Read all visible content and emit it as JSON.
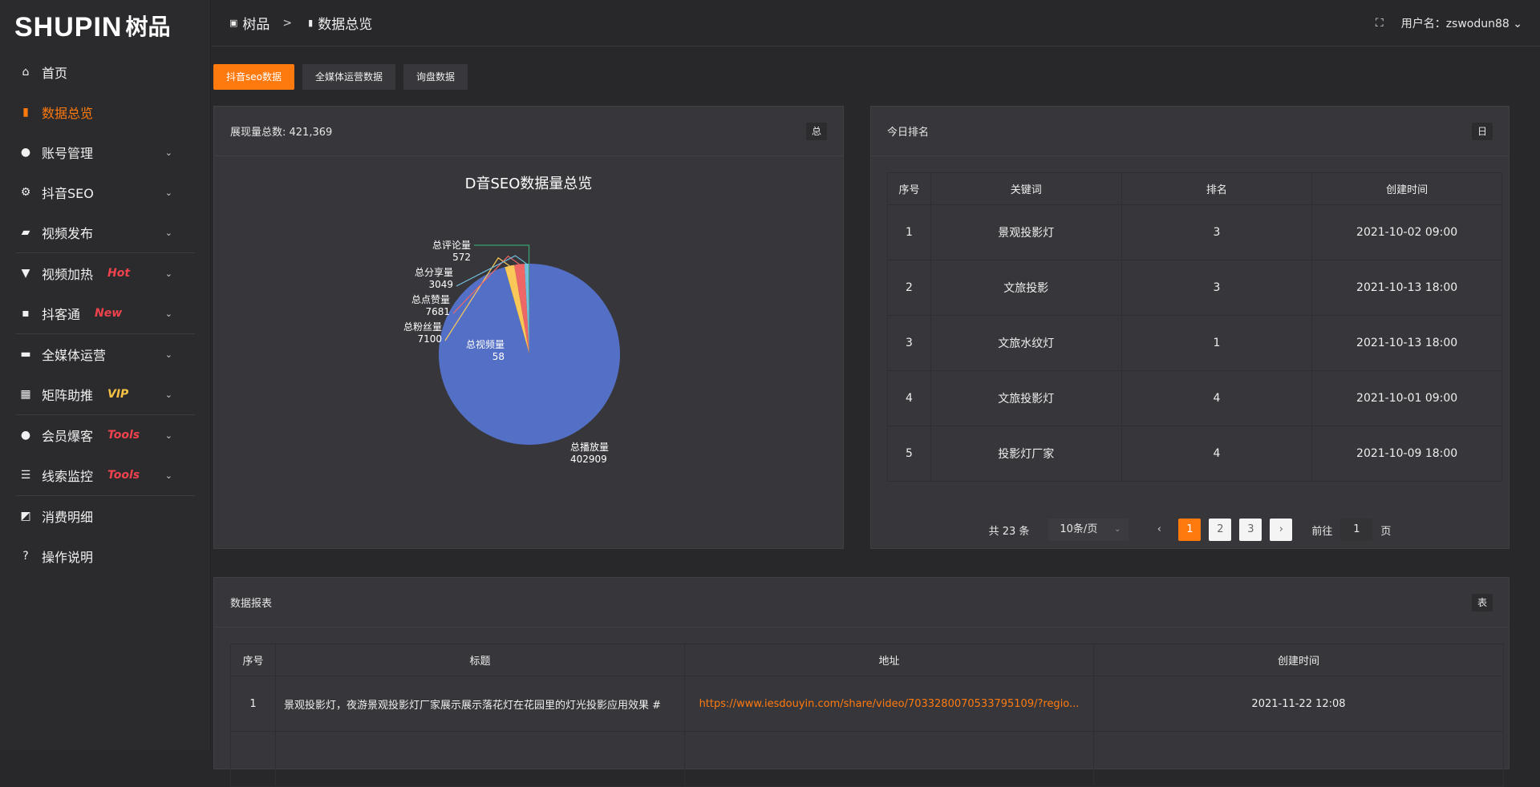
{
  "logo": {
    "en": "SHUPIN",
    "cn": "树品"
  },
  "sidebar": {
    "items": [
      {
        "label": "首页",
        "icon": "home-icon",
        "glyph": "⌂"
      },
      {
        "label": "数据总览",
        "icon": "bar-chart-icon",
        "glyph": "▮",
        "active": true
      },
      {
        "label": "账号管理",
        "icon": "user-icon",
        "glyph": "●",
        "chev": true
      },
      {
        "label": "抖音SEO",
        "icon": "gear-icon",
        "glyph": "⚙",
        "chev": true
      },
      {
        "label": "视频发布",
        "icon": "camera-icon",
        "glyph": "▰",
        "chev": true
      },
      {
        "divider": true
      },
      {
        "label": "视频加热",
        "icon": "heater-icon",
        "glyph": "▼",
        "chev": true,
        "badge": "Hot"
      },
      {
        "label": "抖客通",
        "icon": "chat-icon",
        "glyph": "▪",
        "chev": true,
        "badge": "New"
      },
      {
        "divider": true
      },
      {
        "label": "全媒体运营",
        "icon": "monitor-icon",
        "glyph": "▬",
        "chev": true
      },
      {
        "label": "矩阵助推",
        "icon": "grid-icon",
        "glyph": "▦",
        "chev": true,
        "badge": "VIP",
        "vip": true
      },
      {
        "divider": true
      },
      {
        "label": "会员爆客",
        "icon": "user-icon",
        "glyph": "●",
        "chev": true,
        "badge": "Tools"
      },
      {
        "label": "线索监控",
        "icon": "sliders-icon",
        "glyph": "☰",
        "chev": true,
        "badge": "Tools"
      },
      {
        "divider": true
      },
      {
        "label": "消费明细",
        "icon": "wallet-icon",
        "glyph": "◩"
      },
      {
        "label": "操作说明",
        "icon": "help-icon",
        "glyph": "?"
      }
    ]
  },
  "header": {
    "crumb_root": "树品",
    "crumb_sep": ">",
    "crumb_current": "数据总览",
    "username": "用户名：zswodun88"
  },
  "tabs": [
    "抖音seo数据",
    "全媒体运营数据",
    "询盘数据"
  ],
  "pie_card": {
    "title": "展现量总数: 421,369",
    "button": "总"
  },
  "chart_data": {
    "type": "pie",
    "title": "D音SEO数据量总览",
    "legend_position": "bottom",
    "categories": [
      "总播放量",
      "总视频量",
      "总粉丝量",
      "总点赞量",
      "总分享量",
      "总评论量"
    ],
    "values": [
      402909,
      58,
      7100,
      7681,
      3049,
      572
    ],
    "colors": [
      "#5470c6",
      "#91cc75",
      "#fac858",
      "#ee6666",
      "#73c0de",
      "#3ba272"
    ]
  },
  "rank_card": {
    "title": "今日排名",
    "button": "日",
    "columns": [
      "序号",
      "关键词",
      "排名",
      "创建时间"
    ],
    "rows": [
      [
        "1",
        "景观投影灯",
        "3",
        "2021-10-02 09:00"
      ],
      [
        "2",
        "文旅投影",
        "3",
        "2021-10-13 18:00"
      ],
      [
        "3",
        "文旅水纹灯",
        "1",
        "2021-10-13 18:00"
      ],
      [
        "4",
        "文旅投影灯",
        "4",
        "2021-10-01 09:00"
      ],
      [
        "5",
        "投影灯厂家",
        "4",
        "2021-10-09 18:00"
      ]
    ],
    "pager": {
      "total": "共 23 条",
      "size": "10条/页",
      "pages": [
        "1",
        "2",
        "3"
      ],
      "current": "1",
      "goto_label": "前往",
      "goto_value": "1",
      "page_suffix": "页"
    }
  },
  "report_card": {
    "title": "数据报表",
    "button": "表",
    "columns": [
      "序号",
      "标题",
      "地址",
      "创建时间"
    ],
    "rows": [
      [
        "1",
        "景观投影灯，夜游景观投影灯厂家展示展示落花灯在花园里的灯光投影应用效果 #",
        "https://www.iesdouyin.com/share/video/7033280070533795109/?regio...",
        "2021-11-22 12:08"
      ]
    ]
  },
  "accent": "#ff7a0e"
}
